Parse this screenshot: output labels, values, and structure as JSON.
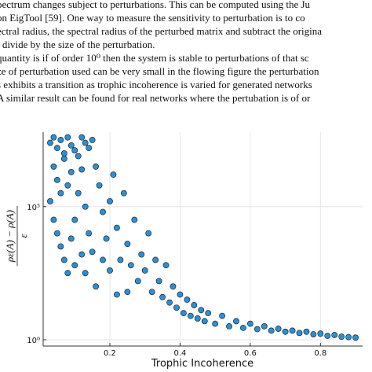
{
  "text": {
    "lines": [
      "pectrum changes subject to perturbations. This can be computed using the Ju",
      "on EigTool [59]. One way to measure the sensitivity to perturbation is to co",
      "ectral radius, the spectral radius of the perturbed matrix and subtract the origina",
      "l divide by the size of the perturbation.",
      "quantity is if of order 10⁰ then the system is stable to perturbations of that sc",
      "ze of perturbation used can be very small in the flowing figure the perturbation",
      "s exhibits a transition as trophic incoherence is varied for generated networks",
      "A similar result can be found for real networks where the pertubation is of or"
    ]
  },
  "chart_data": {
    "type": "scatter",
    "xlabel": "Trophic Incoherence",
    "ylabel": {
      "numerator": "ρε(A) − ρ(A)",
      "denominator": "ε"
    },
    "color": "#2b8fd6",
    "yscale": "log",
    "grid": true,
    "xlim": [
      0.01,
      0.92
    ],
    "ylim": [
      0.58,
      63000000
    ],
    "xticks": [
      0.2,
      0.4,
      0.6,
      0.8
    ],
    "yticks": [
      {
        "value": 1,
        "label": "10⁰"
      },
      {
        "value": 100000,
        "label": "10⁵"
      }
    ],
    "x": [
      0.03,
      0.04,
      0.05,
      0.06,
      0.07,
      0.08,
      0.09,
      0.1,
      0.12,
      0.13,
      0.14,
      0.15,
      0.04,
      0.05,
      0.06,
      0.07,
      0.03,
      0.04,
      0.05,
      0.06,
      0.07,
      0.08,
      0.09,
      0.1,
      0.11,
      0.12,
      0.13,
      0.14,
      0.15,
      0.16,
      0.17,
      0.18,
      0.19,
      0.2,
      0.21,
      0.22,
      0.23,
      0.24,
      0.25,
      0.26,
      0.27,
      0.28,
      0.29,
      0.3,
      0.31,
      0.32,
      0.33,
      0.34,
      0.35,
      0.36,
      0.37,
      0.38,
      0.39,
      0.4,
      0.41,
      0.42,
      0.43,
      0.44,
      0.45,
      0.46,
      0.47,
      0.48,
      0.5,
      0.52,
      0.54,
      0.56,
      0.58,
      0.6,
      0.62,
      0.64,
      0.66,
      0.68,
      0.7,
      0.72,
      0.74,
      0.76,
      0.78,
      0.8,
      0.82,
      0.84,
      0.86,
      0.88,
      0.9,
      0.1,
      0.12,
      0.08,
      0.09,
      0.11,
      0.13,
      0.16,
      0.2,
      0.25,
      0.18,
      0.22
    ],
    "values": [
      25000000,
      40000000,
      16000000,
      32000000,
      10000000,
      40000000,
      20000000,
      13000000,
      40000000,
      25000000,
      16000000,
      32000000,
      3200000,
      1000000,
      320000,
      6300000,
      160000,
      32000,
      10000,
      3200,
      1000,
      320,
      6300,
      32000,
      320000,
      2500000,
      100000,
      10000,
      2000,
      3200000,
      630000,
      63000,
      6300,
      160000,
      1600000,
      16000,
      1000,
      320000,
      4000,
      630,
      32000,
      160,
      1600,
      400,
      10000,
      63,
      1000,
      160,
      40,
      630,
      25,
      100,
      16,
      50,
      10,
      32,
      7.9,
      20,
      6.3,
      13,
      5,
      10,
      4,
      7.9,
      3.2,
      5,
      2.8,
      4,
      2.5,
      3.2,
      2.2,
      2.6,
      2,
      2.2,
      1.8,
      2,
      1.6,
      1.7,
      1.4,
      1.5,
      1.3,
      1.26,
      1.2,
      630,
      1600,
      630000,
      2000000,
      7900000,
      320,
      100,
      400,
      63,
      1000,
      50
    ]
  }
}
